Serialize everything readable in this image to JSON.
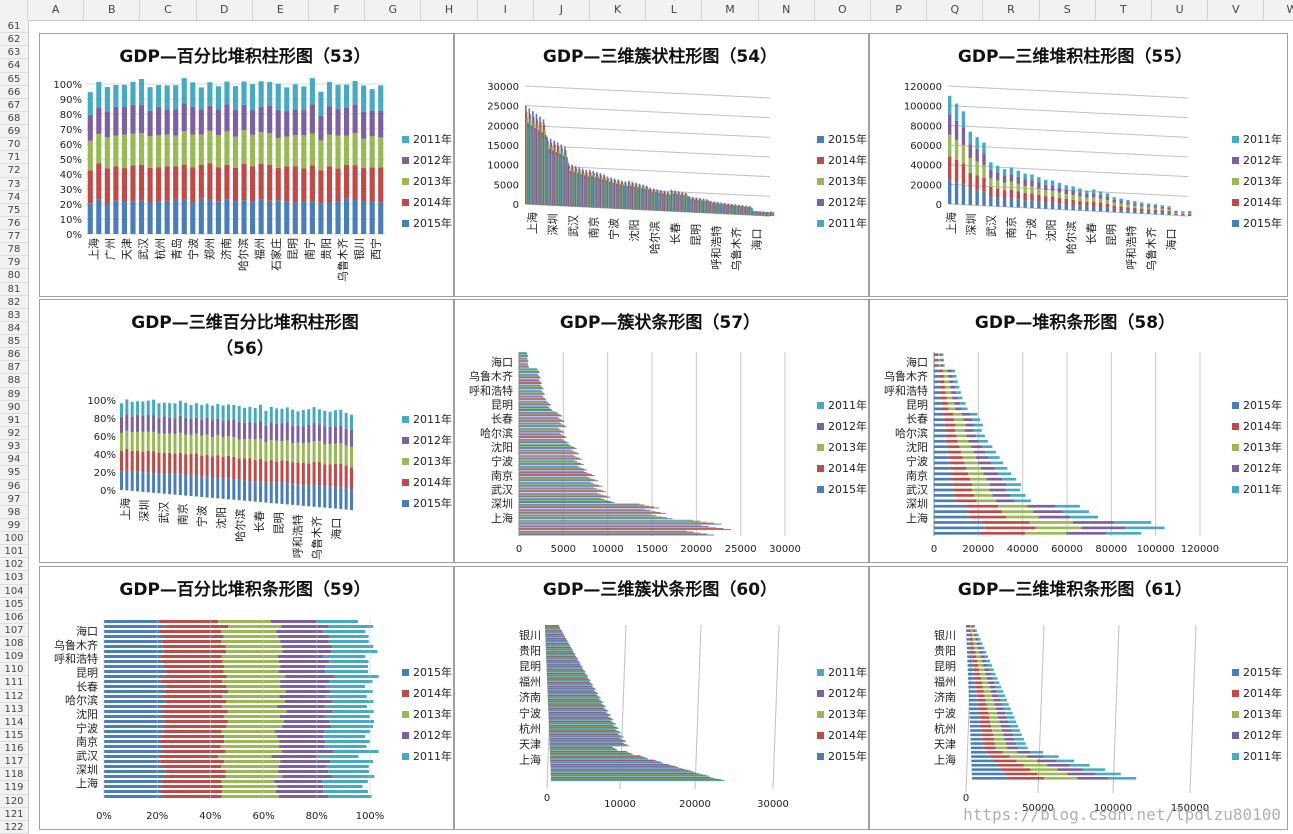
{
  "sheet": {
    "columns": [
      "A",
      "B",
      "C",
      "D",
      "E",
      "F",
      "G",
      "H",
      "I",
      "J",
      "K",
      "L",
      "M",
      "N",
      "O",
      "P",
      "Q",
      "R",
      "S",
      "T",
      "U",
      "V",
      "W"
    ],
    "rows_start": 61,
    "rows_end": 122
  },
  "cities_top": [
    "上海",
    "广州",
    "天津",
    "武汉",
    "杭州",
    "青岛",
    "宁波",
    "郑州",
    "济南",
    "哈尔滨",
    "福州",
    "石家庄",
    "昆明",
    "南宁",
    "贵阳",
    "乌鲁木齐",
    "银川",
    "西宁"
  ],
  "cities_3d": [
    "上海",
    "深圳",
    "武汉",
    "南京",
    "宁波",
    "沈阳",
    "哈尔滨",
    "长春",
    "昆明",
    "呼和浩特",
    "乌鲁木齐",
    "海口"
  ],
  "cities_bar": [
    "海口",
    "乌鲁木齐",
    "呼和浩特",
    "昆明",
    "长春",
    "哈尔滨",
    "沈阳",
    "宁波",
    "南京",
    "武汉",
    "深圳",
    "上海"
  ],
  "cities_3dbar": [
    "银川",
    "贵阳",
    "昆明",
    "福州",
    "济南",
    "宁波",
    "杭州",
    "天津",
    "上海"
  ],
  "watermark": "https://blog.csdn.net/lpdlzu80100",
  "colors": {
    "2015年": "#4a7ebb",
    "2014年": "#be4b48",
    "2013年": "#98b954",
    "2012年": "#7d60a0",
    "2011年": "#46aac5"
  },
  "chart_data": [
    {
      "id": "c53",
      "type": "bar",
      "title": "GDP—百分比堆积柱形图（53）",
      "stacking": "percent",
      "y_ticks": [
        "0%",
        "10%",
        "20%",
        "30%",
        "40%",
        "50%",
        "60%",
        "70%",
        "80%",
        "90%",
        "100%"
      ],
      "x_ticks": [
        "上海",
        "广州",
        "天津",
        "武汉",
        "杭州",
        "青岛",
        "宁波",
        "郑州",
        "济南",
        "哈尔滨",
        "福州",
        "石家庄",
        "昆明",
        "南宁",
        "贵阳",
        "乌鲁木齐",
        "银川",
        "西宁"
      ],
      "legend": [
        "2011年",
        "2012年",
        "2013年",
        "2014年",
        "2015年"
      ],
      "legend_position": "right",
      "shares": [
        0.22,
        0.23,
        0.21,
        0.18,
        0.16
      ]
    },
    {
      "id": "c54",
      "type": "bar",
      "title": "GDP—三维簇状柱形图（54）",
      "stacking": "none",
      "y_ticks": [
        "0",
        "5000",
        "10000",
        "15000",
        "20000",
        "25000",
        "30000"
      ],
      "ylim": [
        0,
        30000
      ],
      "x_ticks": [
        "上海",
        "深圳",
        "武汉",
        "南京",
        "宁波",
        "沈阳",
        "哈尔滨",
        "长春",
        "昆明",
        "呼和浩特",
        "乌鲁木齐",
        "海口"
      ],
      "legend": [
        "2015年",
        "2014年",
        "2013年",
        "2012年",
        "2011年"
      ],
      "legend_position": "right",
      "values_2015": [
        25000,
        17500,
        11000,
        9700,
        8000,
        7200,
        5750,
        5530,
        3970,
        3090,
        2630,
        1160
      ]
    },
    {
      "id": "c55",
      "type": "bar",
      "title": "GDP—三维堆积柱形图（55）",
      "stacking": "stacked",
      "y_ticks": [
        "0",
        "20000",
        "40000",
        "60000",
        "80000",
        "100000",
        "120000"
      ],
      "ylim": [
        0,
        120000
      ],
      "x_ticks": [
        "上海",
        "深圳",
        "武汉",
        "南京",
        "宁波",
        "沈阳",
        "哈尔滨",
        "长春",
        "昆明",
        "呼和浩特",
        "乌鲁木齐",
        "海口"
      ],
      "legend": [
        "2011年",
        "2012年",
        "2013年",
        "2014年",
        "2015年"
      ],
      "legend_position": "right",
      "totals": [
        110000,
        75000,
        45000,
        41000,
        35000,
        30000,
        25000,
        23000,
        16000,
        13000,
        11000,
        5000
      ]
    },
    {
      "id": "c56",
      "type": "bar",
      "title_line1": "GDP—三维百分比堆积柱形图",
      "title_line2": "（56）",
      "stacking": "percent",
      "y_ticks": [
        "0%",
        "20%",
        "40%",
        "60%",
        "80%",
        "100%"
      ],
      "x_ticks": [
        "上海",
        "深圳",
        "武汉",
        "南京",
        "宁波",
        "沈阳",
        "哈尔滨",
        "长春",
        "昆明",
        "呼和浩特",
        "乌鲁木齐",
        "海口"
      ],
      "legend": [
        "2011年",
        "2012年",
        "2013年",
        "2014年",
        "2015年"
      ],
      "legend_position": "right",
      "shares": [
        0.22,
        0.23,
        0.21,
        0.18,
        0.16
      ]
    },
    {
      "id": "c57",
      "type": "bar",
      "title": "GDP—簇状条形图（57）",
      "orientation": "horizontal",
      "stacking": "none",
      "x_ticks": [
        "0",
        "5000",
        "10000",
        "15000",
        "20000",
        "25000",
        "30000"
      ],
      "xlim": [
        0,
        30000
      ],
      "y_ticks": [
        "海口",
        "乌鲁木齐",
        "呼和浩特",
        "昆明",
        "长春",
        "哈尔滨",
        "沈阳",
        "宁波",
        "南京",
        "武汉",
        "深圳",
        "上海"
      ],
      "legend": [
        "2011年",
        "2012年",
        "2013年",
        "2014年",
        "2015年"
      ],
      "legend_position": "right",
      "values_2015": [
        1160,
        2630,
        3090,
        3970,
        5530,
        5750,
        7200,
        8000,
        9700,
        11000,
        17500,
        25000
      ]
    },
    {
      "id": "c58",
      "type": "bar",
      "title": "GDP—堆积条形图（58）",
      "orientation": "horizontal",
      "stacking": "stacked",
      "x_ticks": [
        "0",
        "20000",
        "40000",
        "60000",
        "80000",
        "100000",
        "120000"
      ],
      "xlim": [
        0,
        120000
      ],
      "y_ticks": [
        "海口",
        "乌鲁木齐",
        "呼和浩特",
        "昆明",
        "长春",
        "哈尔滨",
        "沈阳",
        "宁波",
        "南京",
        "武汉",
        "深圳",
        "上海"
      ],
      "legend": [
        "2015年",
        "2014年",
        "2013年",
        "2012年",
        "2011年"
      ],
      "legend_position": "right",
      "totals": [
        5000,
        11000,
        13000,
        16000,
        23000,
        25000,
        30000,
        35000,
        41000,
        45000,
        75000,
        110000
      ]
    },
    {
      "id": "c59",
      "type": "bar",
      "title": "GDP—百分比堆积条形图（59）",
      "orientation": "horizontal",
      "stacking": "percent",
      "x_ticks": [
        "0%",
        "20%",
        "40%",
        "60%",
        "80%",
        "100%"
      ],
      "y_ticks": [
        "海口",
        "乌鲁木齐",
        "呼和浩特",
        "昆明",
        "长春",
        "哈尔滨",
        "沈阳",
        "宁波",
        "南京",
        "武汉",
        "深圳",
        "上海"
      ],
      "legend": [
        "2015年",
        "2014年",
        "2013年",
        "2012年",
        "2011年"
      ],
      "legend_position": "right",
      "shares": [
        0.22,
        0.23,
        0.21,
        0.18,
        0.16
      ]
    },
    {
      "id": "c60",
      "type": "bar",
      "title": "GDP—三维簇状条形图（60）",
      "orientation": "horizontal",
      "stacking": "none",
      "x_ticks": [
        "0",
        "10000",
        "20000",
        "30000"
      ],
      "xlim": [
        0,
        30000
      ],
      "y_ticks": [
        "银川",
        "贵阳",
        "昆明",
        "福州",
        "济南",
        "宁波",
        "杭州",
        "天津",
        "上海"
      ],
      "legend": [
        "2011年",
        "2012年",
        "2013年",
        "2014年",
        "2015年"
      ],
      "legend_position": "right"
    },
    {
      "id": "c61",
      "type": "bar",
      "title": "GDP—三维堆积条形图（61）",
      "orientation": "horizontal",
      "stacking": "stacked",
      "x_ticks": [
        "0",
        "50000",
        "100000",
        "150000"
      ],
      "xlim": [
        0,
        150000
      ],
      "y_ticks": [
        "银川",
        "贵阳",
        "昆明",
        "福州",
        "济南",
        "宁波",
        "杭州",
        "天津",
        "上海"
      ],
      "legend": [
        "2015年",
        "2014年",
        "2013年",
        "2012年",
        "2011年"
      ],
      "legend_position": "right"
    }
  ]
}
